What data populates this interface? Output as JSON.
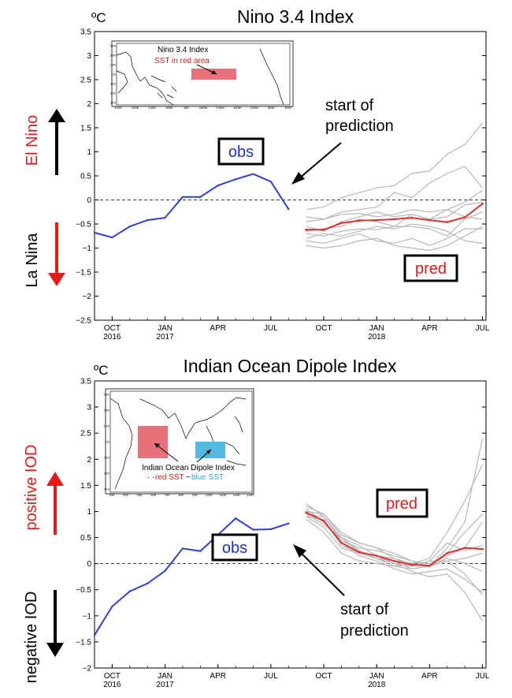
{
  "colors": {
    "obs": "#2c3fe0",
    "pred_mean": "#e03030",
    "member": "#b8b8b8",
    "red": "#e81818",
    "black": "#000000",
    "blue": "#1f2fd8",
    "inset_red": "#e8707a",
    "inset_blue": "#55b8e0"
  },
  "chart_data": [
    {
      "type": "line",
      "title": "Nino 3.4 Index",
      "unit": "ºC",
      "ylim": [
        -2.5,
        3.5
      ],
      "yticks": [
        -2.5,
        -2,
        -1.5,
        -1,
        -0.5,
        0,
        0.5,
        1,
        1.5,
        2,
        2.5,
        3,
        3.5
      ],
      "ytick_labels": [
        "−2.5",
        "−2",
        "−1.5",
        "−1",
        "−0.5",
        "0",
        "0.5",
        "1",
        "1.5",
        "2",
        "2.5",
        "3",
        "3.5"
      ],
      "xlim": [
        0,
        22.2
      ],
      "xticks": [
        {
          "pos": 1,
          "label": "OCT",
          "year": "2016"
        },
        {
          "pos": 4,
          "label": "JAN",
          "year": "2017"
        },
        {
          "pos": 7,
          "label": "APR",
          "year": ""
        },
        {
          "pos": 10,
          "label": "JUL",
          "year": ""
        },
        {
          "pos": 13,
          "label": "OCT",
          "year": ""
        },
        {
          "pos": 16,
          "label": "JAN",
          "year": "2018"
        },
        {
          "pos": 19,
          "label": "APR",
          "year": ""
        },
        {
          "pos": 22,
          "label": "JUL",
          "year": ""
        }
      ],
      "obs": {
        "name": "obs",
        "x": [
          0,
          1,
          2,
          3,
          4,
          5,
          6,
          7,
          8,
          9,
          10,
          11
        ],
        "y": [
          -0.68,
          -0.78,
          -0.55,
          -0.42,
          -0.37,
          0.06,
          0.06,
          0.3,
          0.43,
          0.54,
          0.38,
          -0.19
        ]
      },
      "pred": {
        "name": "pred",
        "x": [
          12,
          13,
          14,
          15,
          16,
          17,
          18,
          19,
          20,
          21,
          22
        ],
        "mean": [
          -0.62,
          -0.62,
          -0.48,
          -0.43,
          -0.42,
          -0.4,
          -0.37,
          -0.42,
          -0.46,
          -0.36,
          -0.08
        ],
        "members": [
          [
            -0.2,
            -0.15,
            0.05,
            0.15,
            0.25,
            0.3,
            0.55,
            0.6,
            0.95,
            1.15,
            1.6
          ],
          [
            -0.45,
            -0.4,
            -0.25,
            -0.2,
            -0.15,
            0.15,
            0.05,
            0.35,
            0.55,
            0.7,
            0.25
          ],
          [
            -0.35,
            -0.4,
            -0.3,
            -0.28,
            -0.35,
            -0.3,
            -0.2,
            -0.25,
            -0.2,
            -0.05,
            0.2
          ],
          [
            -0.65,
            -0.6,
            -0.55,
            -0.4,
            -0.45,
            -0.55,
            -0.3,
            -0.4,
            -0.35,
            -0.1,
            -0.05
          ],
          [
            -0.7,
            -0.75,
            -0.65,
            -0.6,
            -0.62,
            -0.55,
            -0.55,
            -0.6,
            -0.75,
            -0.4,
            -0.25
          ],
          [
            -0.85,
            -0.9,
            -0.8,
            -0.7,
            -0.85,
            -0.9,
            -0.8,
            -0.95,
            -0.8,
            -0.6,
            -0.6
          ],
          [
            -0.95,
            -1.0,
            -0.95,
            -0.85,
            -0.8,
            -0.95,
            -1.0,
            -1.05,
            -0.95,
            -0.75,
            -0.55
          ],
          [
            -0.55,
            -0.65,
            -0.45,
            -0.35,
            -0.25,
            -0.35,
            -0.3,
            -0.4,
            -0.2,
            -0.35,
            -0.4
          ],
          [
            -0.8,
            -0.7,
            -0.75,
            -0.65,
            -0.55,
            -0.6,
            -0.5,
            -0.55,
            -0.65,
            -0.85,
            -0.9
          ]
        ]
      },
      "labels": {
        "obs_box": "obs",
        "pred_box": "pred",
        "start_note_line1": "start of",
        "start_note_line2": "prediction",
        "side_top": "El Nino",
        "side_bottom": "La Nina"
      },
      "inset": {
        "title": "Nino 3.4 Index",
        "subtitle": "SST in red area",
        "lon_labels": [
          "100E",
          "120E",
          "140E",
          "160E",
          "180",
          "160W",
          "140W",
          "120W",
          "100W",
          "80W",
          "60W"
        ],
        "lat_labels": [
          "30N",
          "20N",
          "10N",
          "EQ",
          "10S",
          "20S",
          "30S"
        ]
      }
    },
    {
      "type": "line",
      "title": "Indian Ocean Dipole Index",
      "unit": "ºC",
      "ylim": [
        -2,
        3.5
      ],
      "yticks": [
        -2,
        -1.5,
        -1,
        -0.5,
        0,
        0.5,
        1,
        1.5,
        2,
        2.5,
        3,
        3.5
      ],
      "ytick_labels": [
        "−2",
        "−1.5",
        "−1",
        "−0.5",
        "0",
        "0.5",
        "1",
        "1.5",
        "2",
        "2.5",
        "3",
        "3.5"
      ],
      "xlim": [
        0,
        22.2
      ],
      "xticks": [
        {
          "pos": 1,
          "label": "OCT",
          "year": "2016"
        },
        {
          "pos": 4,
          "label": "JAN",
          "year": "2017"
        },
        {
          "pos": 7,
          "label": "APR",
          "year": ""
        },
        {
          "pos": 10,
          "label": "JUL",
          "year": ""
        },
        {
          "pos": 13,
          "label": "OCT",
          "year": ""
        },
        {
          "pos": 16,
          "label": "JAN",
          "year": "2018"
        },
        {
          "pos": 19,
          "label": "APR",
          "year": ""
        },
        {
          "pos": 22,
          "label": "JUL",
          "year": ""
        }
      ],
      "obs": {
        "name": "obs",
        "x": [
          0,
          1,
          2,
          3,
          4,
          5,
          6,
          7,
          8,
          9,
          10,
          11
        ],
        "y": [
          -1.37,
          -0.82,
          -0.53,
          -0.38,
          -0.14,
          0.29,
          0.24,
          0.55,
          0.87,
          0.65,
          0.66,
          0.77
        ]
      },
      "pred": {
        "name": "pred",
        "x": [
          12,
          13,
          14,
          15,
          16,
          17,
          18,
          19,
          20,
          21,
          22
        ],
        "mean": [
          0.98,
          0.82,
          0.4,
          0.22,
          0.15,
          0.05,
          -0.02,
          -0.04,
          0.2,
          0.3,
          0.28
        ],
        "members": [
          [
            1.1,
            0.95,
            0.55,
            0.4,
            0.3,
            0.2,
            0.05,
            -0.05,
            0.3,
            0.8,
            2.4
          ],
          [
            1.0,
            0.8,
            0.45,
            0.25,
            0.1,
            -0.05,
            0.0,
            0.1,
            0.6,
            1.2,
            1.9
          ],
          [
            0.9,
            0.7,
            0.3,
            0.2,
            0.1,
            0.05,
            -0.1,
            -0.05,
            0.2,
            0.6,
            0.95
          ],
          [
            0.95,
            0.9,
            0.45,
            0.3,
            0.25,
            0.15,
            0.05,
            0.0,
            0.15,
            0.3,
            0.8
          ],
          [
            1.0,
            0.95,
            0.6,
            0.4,
            0.3,
            0.1,
            -0.05,
            0.05,
            0.4,
            0.25,
            0.35
          ],
          [
            0.85,
            0.6,
            0.2,
            0.05,
            0.0,
            -0.05,
            -0.1,
            -0.05,
            0.05,
            0.1,
            0.2
          ],
          [
            1.05,
            0.8,
            0.4,
            0.15,
            0.05,
            -0.1,
            -0.2,
            -0.15,
            -0.1,
            -0.3,
            -0.55
          ],
          [
            0.95,
            0.75,
            0.5,
            0.35,
            0.15,
            0.0,
            -0.05,
            0.05,
            0.05,
            -0.2,
            -0.6
          ],
          [
            0.9,
            0.85,
            0.35,
            0.2,
            0.15,
            0.1,
            0.0,
            -0.05,
            0.1,
            0.0,
            -0.15
          ],
          [
            1.15,
            0.9,
            0.5,
            0.25,
            0.1,
            0.0,
            -0.15,
            -0.25,
            -0.2,
            -0.55,
            -1.1
          ]
        ]
      },
      "labels": {
        "obs_box": "obs",
        "pred_box": "pred",
        "start_note_line1": "start of",
        "start_note_line2": "prediction",
        "side_top": "positive IOD",
        "side_bottom": "negative IOD"
      },
      "inset": {
        "title": "Indian Ocean Dipole Index",
        "red_label": "red SST",
        "dash": "−",
        "blue_label": "blue SST",
        "lon_labels": [
          "30E",
          "40E",
          "50E",
          "60E",
          "70E",
          "80E",
          "90E",
          "100E",
          "110E",
          "120E",
          "130E"
        ],
        "lat_labels": [
          "30N",
          "20N",
          "10N",
          "EQ",
          "10S",
          "20S",
          "30S"
        ]
      }
    }
  ]
}
